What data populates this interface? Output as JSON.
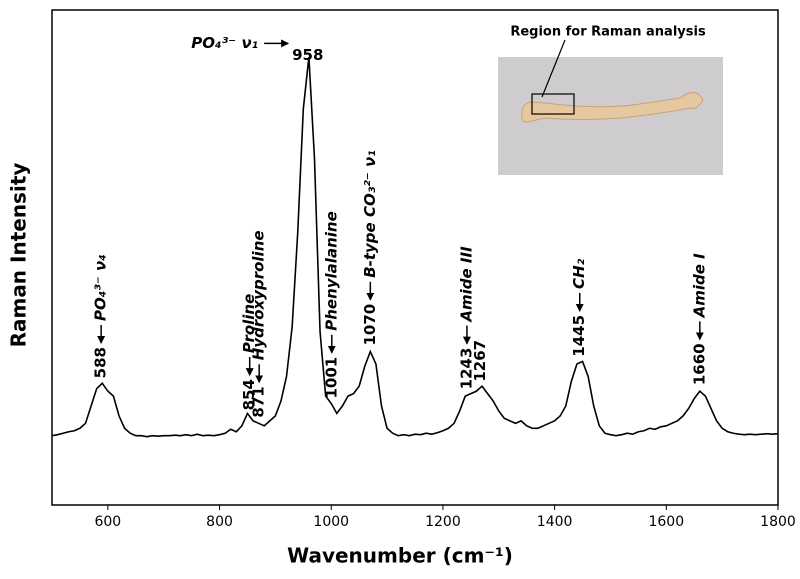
{
  "chart_data": {
    "type": "line",
    "x_label": "Wavenumber (cm⁻¹)",
    "y_label": "Raman Intensity",
    "inset_label": "Region for Raman analysis",
    "xlim": [
      500,
      1800
    ],
    "xticks": [
      600,
      800,
      1000,
      1200,
      1400,
      1600,
      1800
    ],
    "ylim": [
      0,
      100
    ],
    "color": "#000000",
    "x": [
      500,
      510,
      520,
      530,
      540,
      550,
      560,
      570,
      580,
      590,
      600,
      610,
      620,
      630,
      640,
      650,
      660,
      670,
      680,
      690,
      700,
      710,
      720,
      730,
      740,
      750,
      760,
      770,
      780,
      790,
      800,
      810,
      820,
      830,
      840,
      850,
      860,
      870,
      880,
      890,
      900,
      910,
      920,
      930,
      940,
      950,
      960,
      970,
      980,
      990,
      1000,
      1010,
      1020,
      1030,
      1040,
      1050,
      1060,
      1070,
      1080,
      1090,
      1100,
      1110,
      1120,
      1130,
      1140,
      1150,
      1160,
      1170,
      1180,
      1190,
      1200,
      1210,
      1220,
      1230,
      1240,
      1250,
      1260,
      1270,
      1280,
      1290,
      1300,
      1310,
      1320,
      1330,
      1340,
      1350,
      1360,
      1370,
      1380,
      1390,
      1400,
      1410,
      1420,
      1430,
      1440,
      1450,
      1460,
      1470,
      1480,
      1490,
      1500,
      1510,
      1520,
      1530,
      1540,
      1550,
      1560,
      1570,
      1580,
      1590,
      1600,
      1610,
      1620,
      1630,
      1640,
      1650,
      1660,
      1670,
      1680,
      1690,
      1700,
      1710,
      1720,
      1730,
      1740,
      1750,
      1760,
      1770,
      1780,
      1790,
      1800
    ],
    "values": [
      14.0,
      14.2,
      14.5,
      14.8,
      15.0,
      15.5,
      16.5,
      20.0,
      23.5,
      24.6,
      23.0,
      22.0,
      18.0,
      15.5,
      14.5,
      14.0,
      14.0,
      13.8,
      14.0,
      13.9,
      14.0,
      14.0,
      14.1,
      14.0,
      14.2,
      14.0,
      14.3,
      14.0,
      14.1,
      14.0,
      14.2,
      14.5,
      15.3,
      14.8,
      16.0,
      18.5,
      17.0,
      16.5,
      16.0,
      17.0,
      18.0,
      21.0,
      26.0,
      36.0,
      55.0,
      80.0,
      90.5,
      70.0,
      35.0,
      22.0,
      20.5,
      18.5,
      20.0,
      22.0,
      22.5,
      24.0,
      28.0,
      31.0,
      28.5,
      20.0,
      15.5,
      14.5,
      14.0,
      14.2,
      14.0,
      14.3,
      14.2,
      14.5,
      14.3,
      14.6,
      15.0,
      15.5,
      16.5,
      19.0,
      22.0,
      22.5,
      23.0,
      24.0,
      22.5,
      21.0,
      19.0,
      17.5,
      17.0,
      16.5,
      17.0,
      16.0,
      15.5,
      15.5,
      16.0,
      16.5,
      17.0,
      18.0,
      20.0,
      25.0,
      28.5,
      29.0,
      26.0,
      20.0,
      16.0,
      14.5,
      14.2,
      14.0,
      14.2,
      14.5,
      14.3,
      14.8,
      15.0,
      15.5,
      15.3,
      15.8,
      16.0,
      16.5,
      17.0,
      18.0,
      19.5,
      21.5,
      23.0,
      22.0,
      19.5,
      17.0,
      15.5,
      14.8,
      14.5,
      14.3,
      14.2,
      14.3,
      14.2,
      14.3,
      14.4,
      14.3,
      14.4
    ],
    "peaks": [
      {
        "x": 588,
        "name": "PO₄³⁻ ν₄"
      },
      {
        "x": 854,
        "name": "Proline"
      },
      {
        "x": 871,
        "name": "Hydroxyproline"
      },
      {
        "x": 958,
        "name": "PO₄³⁻ ν₁",
        "horizontal": true
      },
      {
        "x": 1001,
        "name": "Phenylalanine"
      },
      {
        "x": 1070,
        "name": "B-type CO₃²⁻ ν₁"
      },
      {
        "x": 1243,
        "name": "Amide III"
      },
      {
        "x": 1267
      },
      {
        "x": 1445,
        "name": "CH₂"
      },
      {
        "x": 1660,
        "name": "Amide I"
      }
    ]
  }
}
